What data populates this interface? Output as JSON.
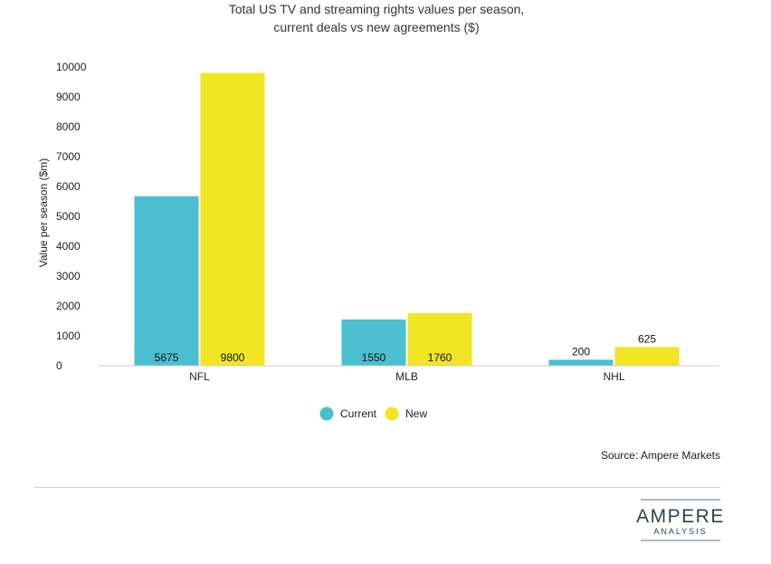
{
  "chart_data": {
    "type": "bar",
    "title": [
      "Total US TV and streaming rights values per season,",
      "current deals vs new agreements ($)"
    ],
    "xlabel": "",
    "ylabel": "Value per season ($m)",
    "ylim": [
      0,
      10000
    ],
    "yticks": [
      0,
      1000,
      2000,
      3000,
      4000,
      5000,
      6000,
      7000,
      8000,
      9000,
      10000
    ],
    "categories": [
      "NFL",
      "MLB",
      "NHL"
    ],
    "series": [
      {
        "name": "Current",
        "color": "#4bbfd0",
        "values": [
          5675,
          1550,
          200
        ]
      },
      {
        "name": "New",
        "color": "#f0e623",
        "values": [
          9800,
          1760,
          625
        ]
      }
    ],
    "legend_position": "bottom-center",
    "grid": false
  },
  "source": "Source: Ampere Markets",
  "logo": {
    "main": "AMPERE",
    "sub": "ANALYSIS"
  }
}
